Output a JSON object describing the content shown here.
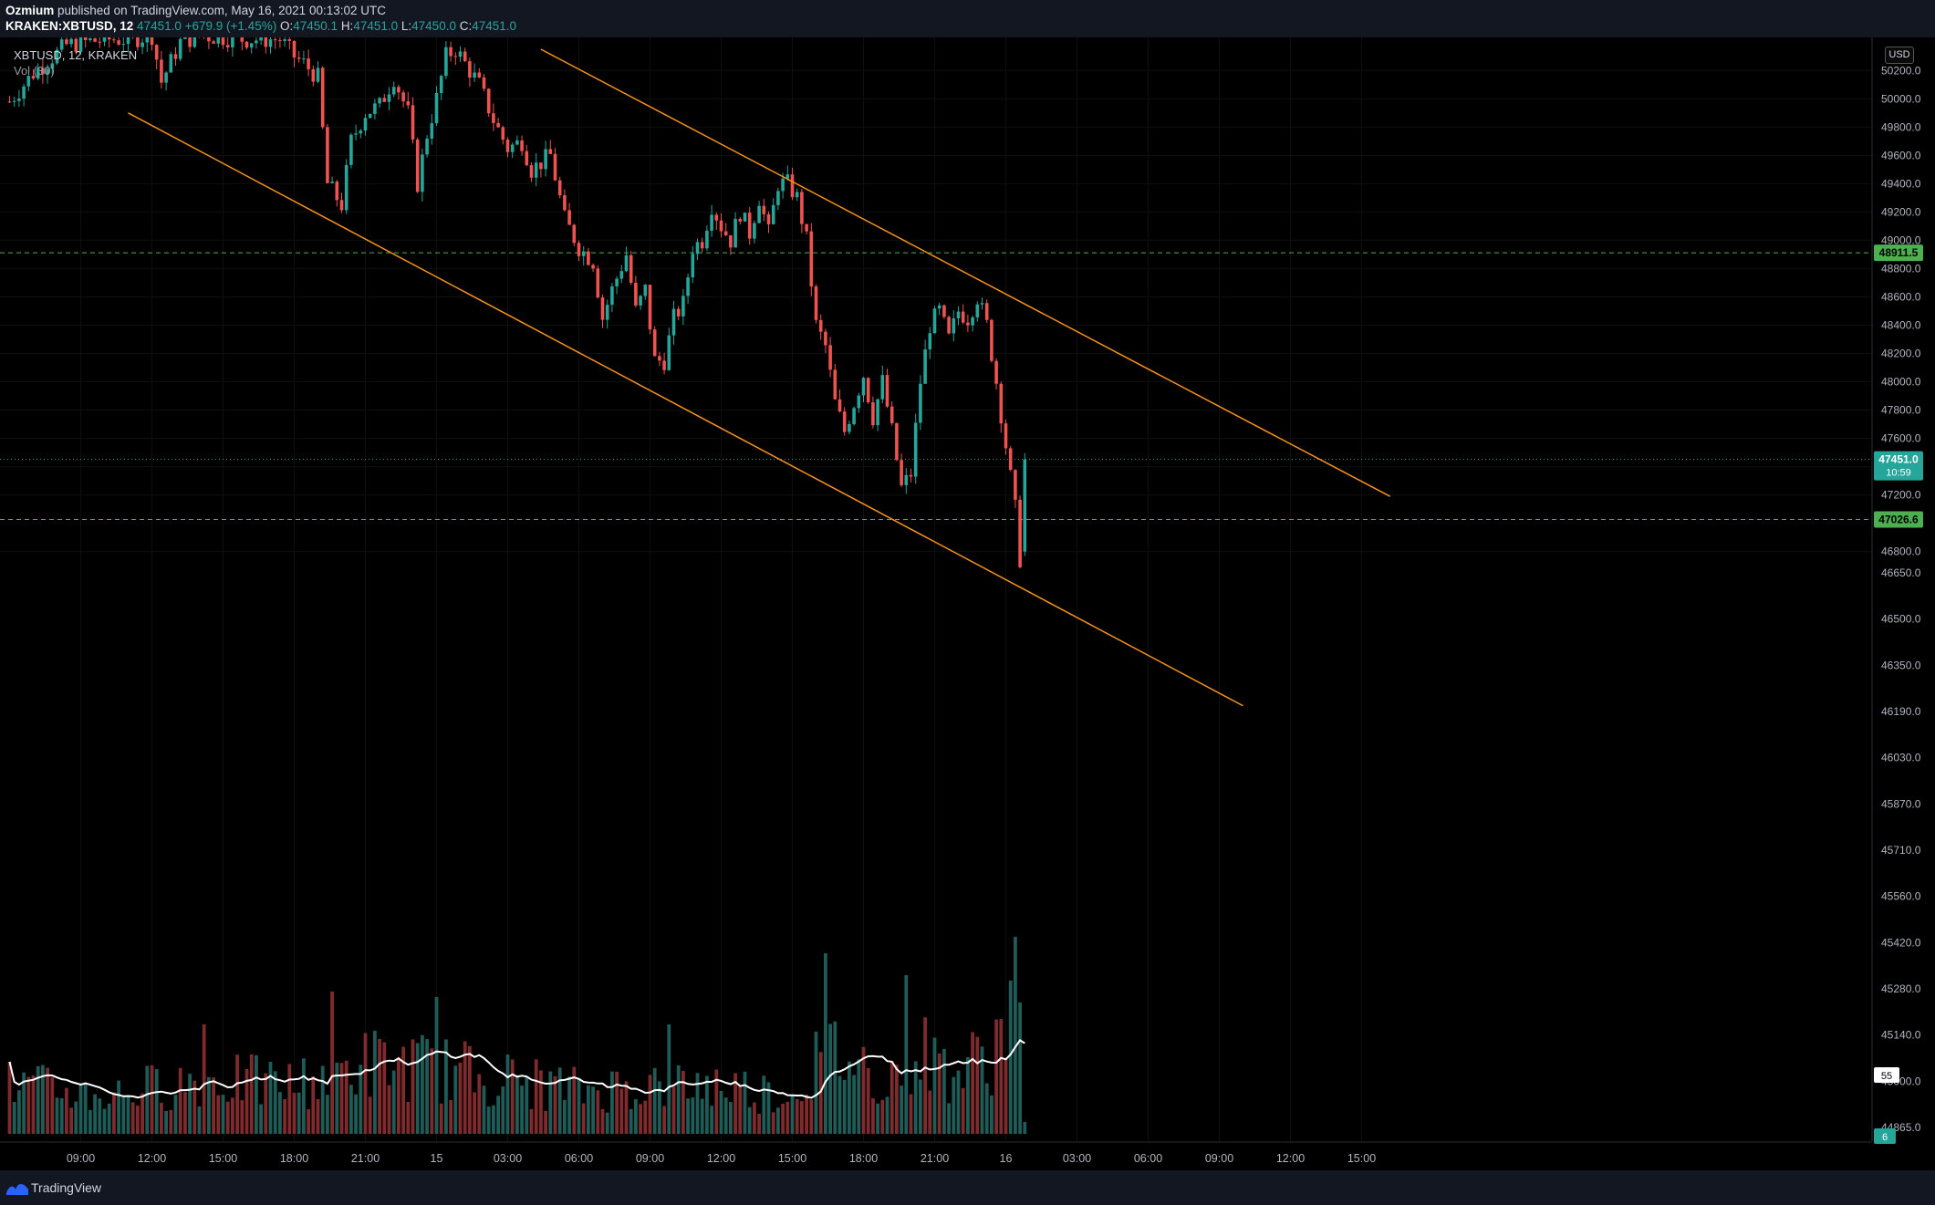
{
  "header": {
    "publisher": "Ozmium",
    "published_text": " published on TradingView.com, May 16, 2021 00:13:02 UTC",
    "symbol": "KRAKEN:XBTUSD, 12",
    "last": "47451.0",
    "change": "+679.9 (+1.45%)",
    "o_label": "O:",
    "o_value": "47450.1",
    "h_label": "H:",
    "h_value": "47451.0",
    "l_label": "L:",
    "l_value": "47450.0",
    "c_label": "C:",
    "c_value": "47451.0"
  },
  "overlay": {
    "symbol_line": "XBTUSD, 12, KRAKEN",
    "volume_line": "Vol (30)",
    "currency_badge": "USD"
  },
  "footer": {
    "brand": "TradingView"
  },
  "colors": {
    "up": "#26a69a",
    "down": "#ef5350",
    "vol_up": "#1f5c57",
    "vol_down": "#7f2a2c",
    "trendline": "#f7931a",
    "level_line": "#4caf50",
    "price_badge": "#26a69a",
    "level_badge": "#4caf50",
    "ma": "#ffffff"
  },
  "chart_data": {
    "type": "candlestick",
    "interval": "12",
    "exchange": "KRAKEN",
    "price_axis": {
      "ticks": [
        50200,
        50000,
        49800,
        49600,
        49400,
        49200,
        49000,
        48800,
        48600,
        48400,
        48200,
        48000,
        47800,
        47600,
        47400,
        47200,
        46800
      ],
      "labels": [
        "50200.0",
        "50000.0",
        "49800.0",
        "49600.0",
        "49400.0",
        "49200.0",
        "49000.0",
        "48800.0",
        "48600.0",
        "48400.0",
        "48200.0",
        "48000.0",
        "47800.0",
        "47600.0",
        "47400.0",
        "47200.0",
        "46800.0"
      ],
      "range": [
        46540,
        50350
      ]
    },
    "volume_axis_labels": [
      "46650.0",
      "46500.0",
      "46350.0",
      "46190.0",
      "46030.0",
      "45870.0",
      "45710.0",
      "45560.0",
      "45420.0",
      "45280.0",
      "45140.0",
      "45000.0",
      "44865.0"
    ],
    "time_axis": {
      "labels": [
        "09:00",
        "12:00",
        "15:00",
        "18:00",
        "21:00",
        "15",
        "03:00",
        "06:00",
        "09:00",
        "12:00",
        "15:00",
        "18:00",
        "21:00",
        "16",
        "03:00",
        "06:00",
        "09:00",
        "12:00",
        "15:00"
      ],
      "tick_bar_index": [
        15,
        30,
        45,
        60,
        75,
        90,
        105,
        120,
        135,
        150,
        165,
        180,
        195,
        210,
        225,
        240,
        255,
        270,
        285
      ]
    },
    "horizontal_levels": [
      {
        "price": 48911.5,
        "label": "48911.5"
      },
      {
        "price": 47026.6,
        "label": "47026.6"
      }
    ],
    "last_price": {
      "price": 47451.0,
      "label": "47451.0",
      "countdown": "10:59"
    },
    "volume_badges": [
      {
        "label": "55"
      },
      {
        "label": "6"
      }
    ],
    "trendlines": [
      {
        "name": "upper",
        "from": {
          "bar": 112,
          "price": 50350
        },
        "to": {
          "bar": 291,
          "price": 47190
        }
      },
      {
        "name": "lower",
        "from": {
          "bar": 25,
          "price": 49900
        },
        "to": {
          "bar": 260,
          "price": 45710
        }
      }
    ],
    "anchors": [
      {
        "bar": 0,
        "price": 49980
      },
      {
        "bar": 5,
        "price": 50180
      },
      {
        "bar": 12,
        "price": 50380
      },
      {
        "bar": 20,
        "price": 50420
      },
      {
        "bar": 25,
        "price": 50420
      },
      {
        "bar": 30,
        "price": 50450
      },
      {
        "bar": 32,
        "price": 50120
      },
      {
        "bar": 36,
        "price": 50400
      },
      {
        "bar": 40,
        "price": 50450
      },
      {
        "bar": 50,
        "price": 50420
      },
      {
        "bar": 57,
        "price": 50420
      },
      {
        "bar": 60,
        "price": 50300
      },
      {
        "bar": 62,
        "price": 50250
      },
      {
        "bar": 65,
        "price": 50150
      },
      {
        "bar": 67,
        "price": 49400
      },
      {
        "bar": 70,
        "price": 49250
      },
      {
        "bar": 72,
        "price": 49700
      },
      {
        "bar": 75,
        "price": 49900
      },
      {
        "bar": 78,
        "price": 49950
      },
      {
        "bar": 81,
        "price": 50150
      },
      {
        "bar": 84,
        "price": 49900
      },
      {
        "bar": 86,
        "price": 49400
      },
      {
        "bar": 88,
        "price": 49750
      },
      {
        "bar": 90,
        "price": 50000
      },
      {
        "bar": 92,
        "price": 50300
      },
      {
        "bar": 94,
        "price": 50350
      },
      {
        "bar": 96,
        "price": 50250
      },
      {
        "bar": 99,
        "price": 50100
      },
      {
        "bar": 102,
        "price": 49850
      },
      {
        "bar": 105,
        "price": 49650
      },
      {
        "bar": 108,
        "price": 49700
      },
      {
        "bar": 110,
        "price": 49500
      },
      {
        "bar": 114,
        "price": 49600
      },
      {
        "bar": 117,
        "price": 49150
      },
      {
        "bar": 120,
        "price": 48950
      },
      {
        "bar": 123,
        "price": 48850
      },
      {
        "bar": 125,
        "price": 48450
      },
      {
        "bar": 127,
        "price": 48650
      },
      {
        "bar": 130,
        "price": 48900
      },
      {
        "bar": 132,
        "price": 48500
      },
      {
        "bar": 134,
        "price": 48650
      },
      {
        "bar": 136,
        "price": 48150
      },
      {
        "bar": 138,
        "price": 48150
      },
      {
        "bar": 140,
        "price": 48450
      },
      {
        "bar": 142,
        "price": 48550
      },
      {
        "bar": 144,
        "price": 48950
      },
      {
        "bar": 146,
        "price": 49000
      },
      {
        "bar": 148,
        "price": 49250
      },
      {
        "bar": 150,
        "price": 49100
      },
      {
        "bar": 152,
        "price": 49000
      },
      {
        "bar": 154,
        "price": 49200
      },
      {
        "bar": 156,
        "price": 49050
      },
      {
        "bar": 158,
        "price": 49300
      },
      {
        "bar": 160,
        "price": 49050
      },
      {
        "bar": 162,
        "price": 49400
      },
      {
        "bar": 164,
        "price": 49400
      },
      {
        "bar": 166,
        "price": 49300
      },
      {
        "bar": 168,
        "price": 49000
      },
      {
        "bar": 170,
        "price": 48400
      },
      {
        "bar": 172,
        "price": 48250
      },
      {
        "bar": 174,
        "price": 47850
      },
      {
        "bar": 176,
        "price": 47650
      },
      {
        "bar": 178,
        "price": 47850
      },
      {
        "bar": 180,
        "price": 48050
      },
      {
        "bar": 182,
        "price": 47750
      },
      {
        "bar": 184,
        "price": 48000
      },
      {
        "bar": 186,
        "price": 47650
      },
      {
        "bar": 188,
        "price": 47250
      },
      {
        "bar": 190,
        "price": 47350
      },
      {
        "bar": 192,
        "price": 48000
      },
      {
        "bar": 194,
        "price": 48400
      },
      {
        "bar": 196,
        "price": 48500
      },
      {
        "bar": 198,
        "price": 48300
      },
      {
        "bar": 200,
        "price": 48500
      },
      {
        "bar": 202,
        "price": 48450
      },
      {
        "bar": 204,
        "price": 48600
      },
      {
        "bar": 206,
        "price": 48400
      },
      {
        "bar": 208,
        "price": 48000
      },
      {
        "bar": 210,
        "price": 47550
      },
      {
        "bar": 212,
        "price": 47100
      },
      {
        "bar": 213,
        "price": 46750
      },
      {
        "bar": 214,
        "price": 47451
      }
    ],
    "volume_range": [
      0,
      100
    ],
    "volume_shape": [
      {
        "bar": 0,
        "value": 18
      },
      {
        "bar": 20,
        "value": 14
      },
      {
        "bar": 40,
        "value": 20
      },
      {
        "bar": 60,
        "value": 18
      },
      {
        "bar": 75,
        "value": 26
      },
      {
        "bar": 90,
        "value": 24
      },
      {
        "bar": 105,
        "value": 20
      },
      {
        "bar": 120,
        "value": 16
      },
      {
        "bar": 135,
        "value": 18
      },
      {
        "bar": 150,
        "value": 18
      },
      {
        "bar": 165,
        "value": 14
      },
      {
        "bar": 172,
        "value": 32
      },
      {
        "bar": 185,
        "value": 20
      },
      {
        "bar": 190,
        "value": 32
      },
      {
        "bar": 200,
        "value": 22
      },
      {
        "bar": 207,
        "value": 30
      },
      {
        "bar": 212,
        "value": 46
      },
      {
        "bar": 214,
        "value": 4
      }
    ],
    "volume_spikes": [
      {
        "bar": 172,
        "value": 66
      },
      {
        "bar": 189,
        "value": 58
      },
      {
        "bar": 212,
        "value": 72
      },
      {
        "bar": 211,
        "value": 56
      },
      {
        "bar": 213,
        "value": 48
      },
      {
        "bar": 68,
        "value": 52
      },
      {
        "bar": 41,
        "value": 40
      },
      {
        "bar": 90,
        "value": 50
      },
      {
        "bar": 139,
        "value": 40
      }
    ]
  }
}
